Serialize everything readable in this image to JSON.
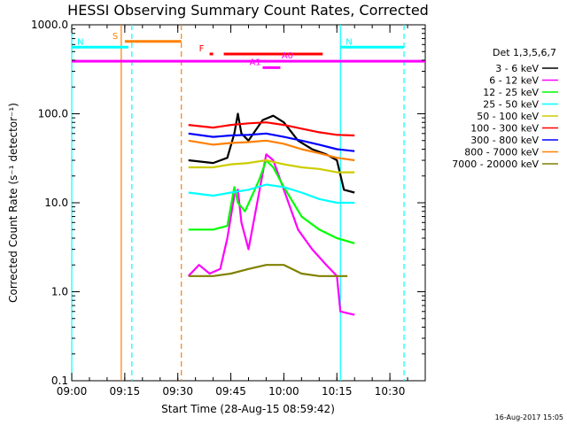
{
  "chart_data": {
    "type": "line",
    "title": "HESSI Observing Summary Count Rates, Corrected",
    "xlabel": "Start Time (28-Aug-15 08:59:42)",
    "ylabel": "Corrected Count Rate (s⁻¹ detector⁻¹)",
    "yscale": "log",
    "ylim": [
      0.1,
      1000.0
    ],
    "xlim": [
      "09:00",
      "10:40"
    ],
    "x_ticks": [
      "09:00",
      "09:15",
      "09:30",
      "09:45",
      "10:00",
      "10:15",
      "10:30"
    ],
    "y_ticks": [
      "0.1",
      "1.0",
      "10.0",
      "100.0",
      "1000.0"
    ],
    "legend_title": "Det 1,3,5,6,7",
    "legend_position": "right",
    "series": [
      {
        "name": "3 - 6 keV",
        "color": "#000000",
        "points": [
          [
            "09:33",
            30
          ],
          [
            "09:40",
            28
          ],
          [
            "09:44",
            32
          ],
          [
            "09:46",
            60
          ],
          [
            "09:47",
            100
          ],
          [
            "09:48",
            60
          ],
          [
            "09:50",
            50
          ],
          [
            "09:54",
            85
          ],
          [
            "09:57",
            95
          ],
          [
            "10:00",
            80
          ],
          [
            "10:04",
            50
          ],
          [
            "10:08",
            40
          ],
          [
            "10:12",
            35
          ],
          [
            "10:15",
            30
          ],
          [
            "10:17",
            14
          ],
          [
            "10:20",
            13
          ]
        ]
      },
      {
        "name": "6 - 12 keV",
        "color": "#ff00ff",
        "points": [
          [
            "09:33",
            1.5
          ],
          [
            "09:36",
            2
          ],
          [
            "09:39",
            1.6
          ],
          [
            "09:42",
            1.8
          ],
          [
            "09:44",
            4
          ],
          [
            "09:46",
            12
          ],
          [
            "09:47",
            14
          ],
          [
            "09:48",
            6
          ],
          [
            "09:50",
            3
          ],
          [
            "09:52",
            8
          ],
          [
            "09:55",
            35
          ],
          [
            "09:57",
            30
          ],
          [
            "10:00",
            14
          ],
          [
            "10:04",
            5
          ],
          [
            "10:08",
            3
          ],
          [
            "10:12",
            2
          ],
          [
            "10:15",
            1.5
          ],
          [
            "10:16",
            0.6
          ],
          [
            "10:20",
            0.55
          ]
        ]
      },
      {
        "name": "12 - 25 keV",
        "color": "#00ff00",
        "points": [
          [
            "09:33",
            5
          ],
          [
            "09:40",
            5
          ],
          [
            "09:44",
            5.5
          ],
          [
            "09:46",
            15
          ],
          [
            "09:47",
            10
          ],
          [
            "09:49",
            8
          ],
          [
            "09:53",
            18
          ],
          [
            "09:55",
            30
          ],
          [
            "09:57",
            25
          ],
          [
            "10:00",
            15
          ],
          [
            "10:05",
            7
          ],
          [
            "10:10",
            5
          ],
          [
            "10:15",
            4
          ],
          [
            "10:20",
            3.5
          ]
        ]
      },
      {
        "name": "25 - 50 keV",
        "color": "#00ffff",
        "points": [
          [
            "09:33",
            13
          ],
          [
            "09:40",
            12
          ],
          [
            "09:45",
            13
          ],
          [
            "09:50",
            14
          ],
          [
            "09:55",
            16
          ],
          [
            "10:00",
            15
          ],
          [
            "10:05",
            13
          ],
          [
            "10:10",
            11
          ],
          [
            "10:15",
            10
          ],
          [
            "10:20",
            10
          ]
        ]
      },
      {
        "name": "50 - 100 keV",
        "color": "#cccc00",
        "points": [
          [
            "09:33",
            25
          ],
          [
            "09:40",
            25
          ],
          [
            "09:45",
            27
          ],
          [
            "09:50",
            28
          ],
          [
            "09:55",
            30
          ],
          [
            "10:00",
            27
          ],
          [
            "10:05",
            25
          ],
          [
            "10:10",
            24
          ],
          [
            "10:15",
            22
          ],
          [
            "10:20",
            22
          ]
        ]
      },
      {
        "name": "100 - 300 keV",
        "color": "#ff0000",
        "points": [
          [
            "09:33",
            75
          ],
          [
            "09:40",
            70
          ],
          [
            "09:45",
            75
          ],
          [
            "09:50",
            78
          ],
          [
            "09:55",
            80
          ],
          [
            "10:00",
            75
          ],
          [
            "10:05",
            68
          ],
          [
            "10:10",
            62
          ],
          [
            "10:15",
            58
          ],
          [
            "10:20",
            57
          ]
        ]
      },
      {
        "name": "300 - 800 keV",
        "color": "#0000ff",
        "points": [
          [
            "09:33",
            60
          ],
          [
            "09:40",
            55
          ],
          [
            "09:45",
            57
          ],
          [
            "09:50",
            58
          ],
          [
            "09:55",
            60
          ],
          [
            "10:00",
            55
          ],
          [
            "10:05",
            50
          ],
          [
            "10:10",
            45
          ],
          [
            "10:15",
            40
          ],
          [
            "10:20",
            38
          ]
        ]
      },
      {
        "name": "800 - 7000 keV",
        "color": "#ff8000",
        "points": [
          [
            "09:33",
            50
          ],
          [
            "09:40",
            45
          ],
          [
            "09:45",
            47
          ],
          [
            "09:50",
            48
          ],
          [
            "09:55",
            50
          ],
          [
            "10:00",
            46
          ],
          [
            "10:05",
            40
          ],
          [
            "10:10",
            36
          ],
          [
            "10:15",
            32
          ],
          [
            "10:20",
            30
          ]
        ]
      },
      {
        "name": "7000 - 20000 keV",
        "color": "#808000",
        "points": [
          [
            "09:33",
            1.5
          ],
          [
            "09:40",
            1.5
          ],
          [
            "09:45",
            1.6
          ],
          [
            "09:50",
            1.8
          ],
          [
            "09:55",
            2
          ],
          [
            "10:00",
            2
          ],
          [
            "10:05",
            1.6
          ],
          [
            "10:10",
            1.5
          ],
          [
            "10:15",
            1.5
          ],
          [
            "10:18",
            1.5
          ]
        ]
      }
    ],
    "flags": [
      {
        "label": "S",
        "color": "#ff8000",
        "start": "09:15",
        "end": "09:31",
        "level": 650
      },
      {
        "label": "N",
        "color": "#00ffff",
        "start": "09:00",
        "end": "09:16",
        "level": 560
      },
      {
        "label": "N",
        "color": "#00ffff",
        "start": "10:16",
        "end": "10:34",
        "level": 560
      },
      {
        "label": "F",
        "color": "#ff0000",
        "start": "09:39",
        "end": "09:40",
        "level": 470
      },
      {
        "label": "",
        "color": "#ff0000",
        "start": "09:43",
        "end": "10:11",
        "level": 470
      },
      {
        "label": "A0",
        "color": "#ff00ff",
        "start": "09:00",
        "end": "10:40",
        "level": 390
      },
      {
        "label": "A1",
        "color": "#ff00ff",
        "start": "09:54",
        "end": "09:59",
        "level": 330
      }
    ],
    "vertical_markers": [
      {
        "time": "09:00",
        "color": "#00ffff",
        "style": "solid"
      },
      {
        "time": "09:14",
        "color": "#ff8000",
        "style": "solid"
      },
      {
        "time": "09:17",
        "color": "#00ffff",
        "style": "dashed"
      },
      {
        "time": "09:31",
        "color": "#ff8000",
        "style": "dashed"
      },
      {
        "time": "10:16",
        "color": "#00ffff",
        "style": "solid"
      },
      {
        "time": "10:34",
        "color": "#00ffff",
        "style": "dashed"
      }
    ]
  },
  "footer": {
    "timestamp": "16-Aug-2017 15:05"
  }
}
